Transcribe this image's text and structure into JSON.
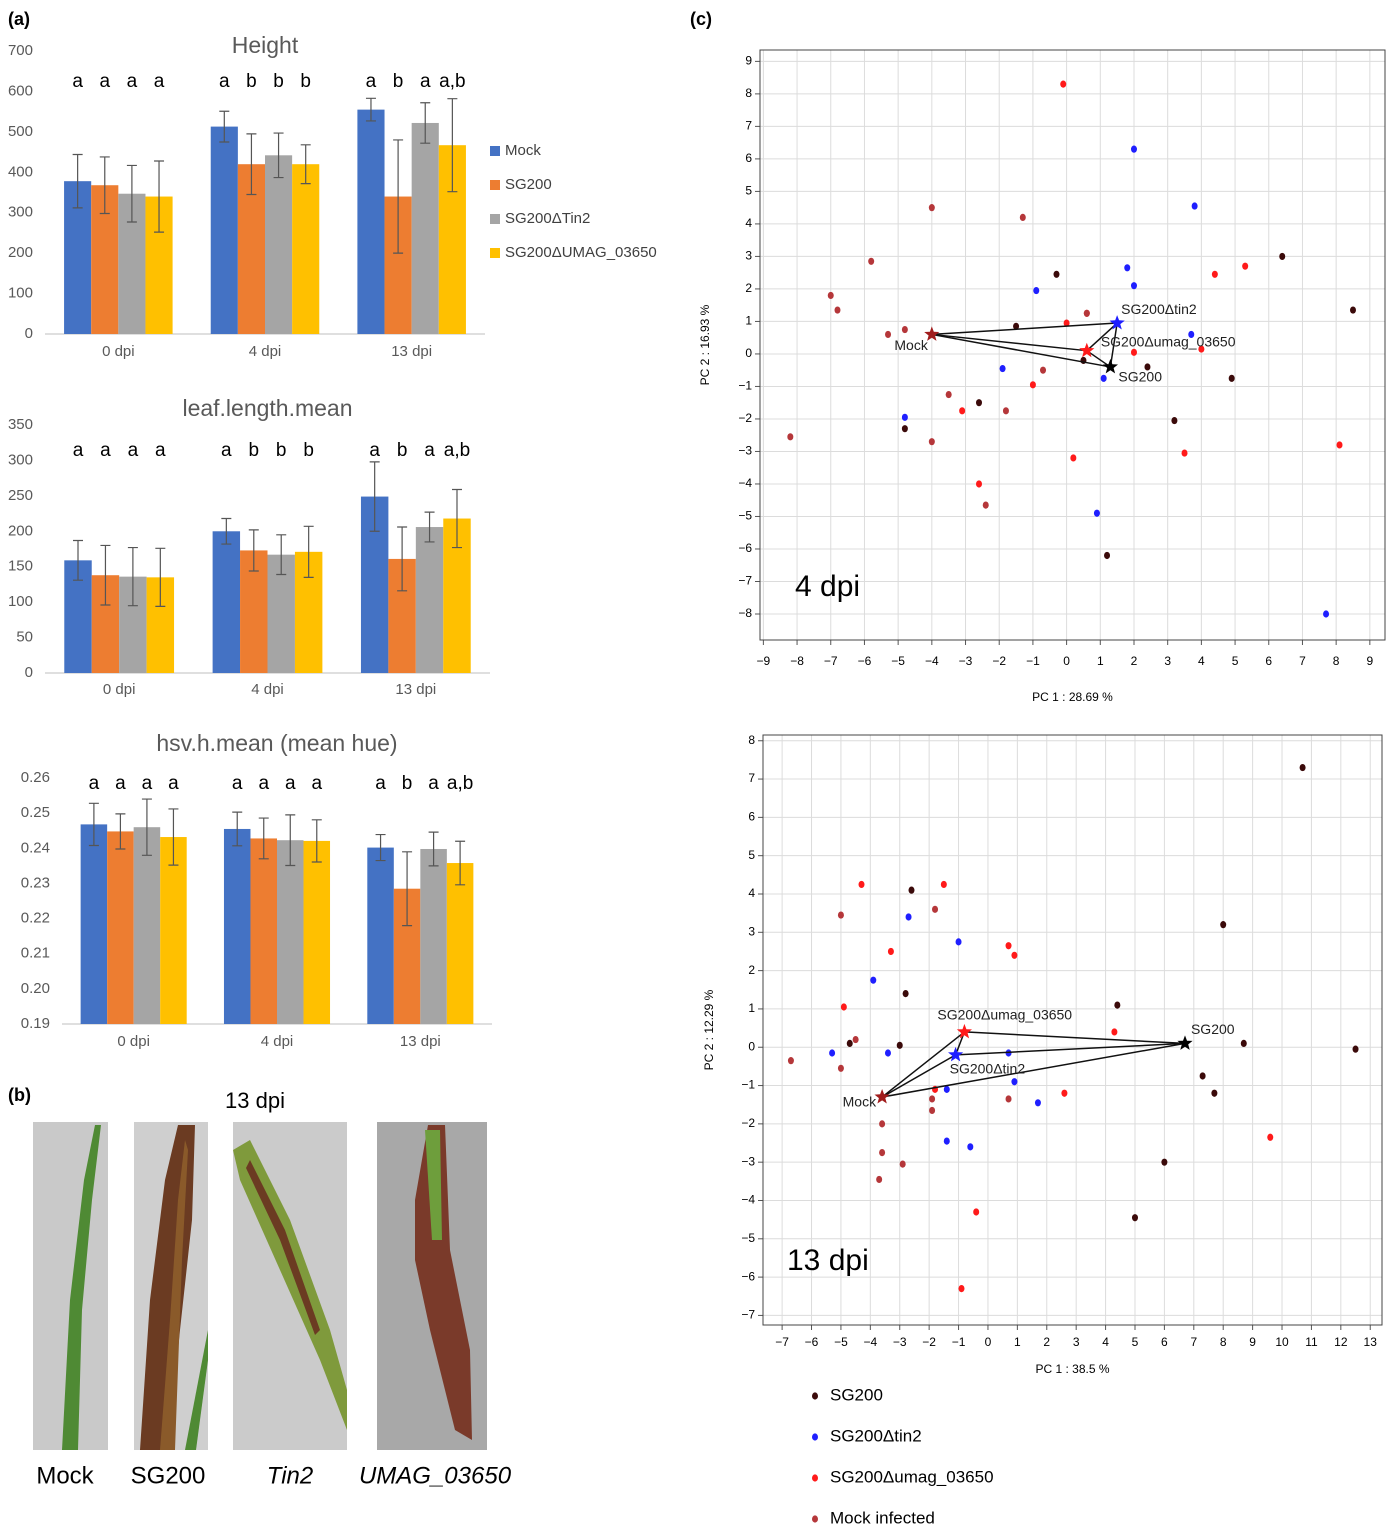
{
  "panel_labels": [
    "(a)",
    "(b)",
    "(c)"
  ],
  "photos": {
    "title": "13 dpi",
    "labels": [
      "Mock",
      "SG200",
      "Tin2",
      "UMAG_03650"
    ]
  },
  "chart_data": [
    {
      "type": "bar",
      "title": "Height",
      "categories": [
        "0 dpi",
        "4 dpi",
        "13 dpi"
      ],
      "ylim": [
        0,
        700
      ],
      "yticks": [
        0,
        100,
        200,
        300,
        400,
        500,
        600,
        700
      ],
      "grid": false,
      "legend": "right",
      "series": [
        {
          "name": "Mock",
          "color": "#4472c4",
          "values": [
            378,
            513,
            555
          ],
          "errors": [
            66,
            38,
            28
          ],
          "letters": [
            "a",
            "a",
            "a"
          ]
        },
        {
          "name": "SG200",
          "color": "#ed7d31",
          "values": [
            368,
            420,
            340
          ],
          "errors": [
            70,
            75,
            140
          ],
          "letters": [
            "a",
            "b",
            "b"
          ]
        },
        {
          "name": "SG200ΔTin2",
          "color": "#a5a5a5",
          "values": [
            347,
            442,
            522
          ],
          "errors": [
            70,
            55,
            50
          ],
          "letters": [
            "a",
            "b",
            "a"
          ]
        },
        {
          "name": "SG200ΔUMAG_03650",
          "color": "#ffc000",
          "values": [
            340,
            420,
            467
          ],
          "errors": [
            88,
            48,
            115
          ],
          "letters": [
            "a",
            "b",
            "a,b"
          ]
        }
      ]
    },
    {
      "type": "bar",
      "title": "leaf.length.mean",
      "categories": [
        "0 dpi",
        "4 dpi",
        "13 dpi"
      ],
      "ylim": [
        0,
        350
      ],
      "yticks": [
        0,
        50,
        100,
        150,
        200,
        250,
        300,
        350
      ],
      "grid": false,
      "series": [
        {
          "color": "#4472c4",
          "values": [
            159,
            200,
            249
          ],
          "errors": [
            28,
            18,
            49
          ],
          "letters": [
            "a",
            "a",
            "a"
          ]
        },
        {
          "color": "#ed7d31",
          "values": [
            138,
            173,
            161
          ],
          "errors": [
            42,
            29,
            45
          ],
          "letters": [
            "a",
            "b",
            "b"
          ]
        },
        {
          "color": "#a5a5a5",
          "values": [
            136,
            167,
            206
          ],
          "errors": [
            41,
            28,
            21
          ],
          "letters": [
            "a",
            "b",
            "a"
          ]
        },
        {
          "color": "#ffc000",
          "values": [
            135,
            171,
            218
          ],
          "errors": [
            41,
            36,
            41
          ],
          "letters": [
            "a",
            "b",
            "a,b"
          ]
        }
      ]
    },
    {
      "type": "bar",
      "title": "hsv.h.mean (mean hue)",
      "categories": [
        "0 dpi",
        "4 dpi",
        "13 dpi"
      ],
      "ylim": [
        0.19,
        0.26
      ],
      "yticks": [
        0.19,
        {
          "value": 0.2,
          "label": "0.20"
        },
        0.21,
        0.22,
        0.23,
        0.24,
        0.25,
        0.26
      ],
      "grid": false,
      "series": [
        {
          "color": "#4472c4",
          "values": [
            0.2468,
            0.2455,
            0.2402
          ],
          "errors": [
            0.006,
            0.0048,
            0.0037
          ],
          "letters": [
            "a",
            "a",
            "a"
          ]
        },
        {
          "color": "#ed7d31",
          "values": [
            0.2448,
            0.2428,
            0.2285
          ],
          "errors": [
            0.005,
            0.0058,
            0.0105
          ],
          "letters": [
            "a",
            "a",
            "b"
          ]
        },
        {
          "color": "#a5a5a5",
          "values": [
            0.246,
            0.2423,
            0.2398
          ],
          "errors": [
            0.008,
            0.0072,
            0.0048
          ],
          "letters": [
            "a",
            "a",
            "a"
          ]
        },
        {
          "color": "#ffc000",
          "values": [
            0.2432,
            0.2421,
            0.2358
          ],
          "errors": [
            0.008,
            0.006,
            0.0062
          ],
          "letters": [
            "a",
            "a",
            "a,b"
          ]
        }
      ]
    },
    {
      "type": "scatter",
      "annotation": "4 dpi",
      "xlabel": "PC 1 :  28.69 %",
      "ylabel": "PC 2 :  16.93 %",
      "xlim": [
        -9.1,
        9.45
      ],
      "ylim": [
        -8.8,
        9.35
      ],
      "grid": true,
      "xticks": [
        {
          "value": -9,
          "label": "−9"
        },
        {
          "value": -8,
          "label": "−8"
        },
        {
          "value": -7,
          "label": "−7"
        },
        {
          "value": -6,
          "label": "−6"
        },
        {
          "value": -5,
          "label": "−5"
        },
        {
          "value": -4,
          "label": "−4"
        },
        {
          "value": -3,
          "label": "−3"
        },
        {
          "value": -2,
          "label": "−2"
        },
        {
          "value": -1,
          "label": "−1"
        },
        0,
        1,
        2,
        3,
        4,
        5,
        6,
        7,
        8,
        9
      ],
      "yticks": [
        {
          "value": -8,
          "label": "−8"
        },
        {
          "value": -7,
          "label": "−7"
        },
        {
          "value": -6,
          "label": "−6"
        },
        {
          "value": -5,
          "label": "−5"
        },
        {
          "value": -4,
          "label": "−4"
        },
        {
          "value": -3,
          "label": "−3"
        },
        {
          "value": -2,
          "label": "−2"
        },
        {
          "value": -1,
          "label": "−1"
        },
        0,
        1,
        2,
        3,
        4,
        5,
        6,
        7,
        8,
        9
      ],
      "series": [
        {
          "color": "#3b0a0a",
          "x": [
            -0.3,
            -1.5,
            0.5,
            -4.8,
            -2.6,
            2.4,
            3.2,
            4.9,
            6.4,
            8.5,
            1.2
          ],
          "y": [
            2.45,
            0.85,
            -0.2,
            -2.3,
            -1.5,
            -0.4,
            -2.05,
            -0.75,
            3.0,
            1.35,
            -6.2
          ]
        },
        {
          "color": "#1f1fff",
          "x": [
            2.0,
            3.8,
            1.8,
            2.0,
            -0.9,
            3.7,
            -1.9,
            1.1,
            -4.8,
            0.9,
            7.7
          ],
          "y": [
            6.3,
            4.55,
            2.65,
            2.1,
            1.95,
            0.6,
            -0.45,
            -0.75,
            -1.95,
            -4.9,
            -8.0
          ]
        },
        {
          "color": "#ff1a1a",
          "x": [
            -0.1,
            4.4,
            5.3,
            0,
            0.6,
            2,
            4,
            -1,
            -3.1,
            3.5,
            8.1,
            0.2,
            -2.6
          ],
          "y": [
            8.3,
            2.45,
            2.7,
            0.95,
            1.25,
            0.05,
            0.15,
            -0.95,
            -1.75,
            -3.05,
            -2.8,
            -3.2,
            -4.0
          ]
        },
        {
          "color": "#b5373a",
          "x": [
            -4,
            -1.3,
            -5.8,
            -7,
            -6.8,
            -5.3,
            -4.8,
            -0.7,
            -3.5,
            -1.8,
            -4,
            -2.4,
            -8.2,
            0.6
          ],
          "y": [
            4.5,
            4.2,
            2.85,
            1.8,
            1.35,
            0.6,
            0.75,
            -0.5,
            -1.25,
            -1.75,
            -2.7,
            -4.65,
            -2.55,
            1.25
          ]
        }
      ],
      "centroids": [
        {
          "label": "SG200Δtin2",
          "color": "#1f1fff",
          "x": 1.5,
          "y": 0.95
        },
        {
          "label": "SG200Δumag_03650",
          "color": "#ff1a1a",
          "x": 0.6,
          "y": 0.1
        },
        {
          "label": "SG200",
          "color": "#000000",
          "x": 1.3,
          "y": -0.4
        },
        {
          "label": "Mock",
          "color": "#a01c1c",
          "x": -4,
          "y": 0.6
        }
      ]
    },
    {
      "type": "scatter",
      "annotation": "13 dpi",
      "xlabel": "PC 1 :  38.5 %",
      "ylabel": "PC 2 :  12.29 %",
      "xlim": [
        -7.65,
        13.4
      ],
      "ylim": [
        -7.25,
        8.15
      ],
      "grid": true,
      "legend": "bottom",
      "xticks": [
        {
          "value": -7,
          "label": "−7"
        },
        {
          "value": -6,
          "label": "−6"
        },
        {
          "value": -5,
          "label": "−5"
        },
        {
          "value": -4,
          "label": "−4"
        },
        {
          "value": -3,
          "label": "−3"
        },
        {
          "value": -2,
          "label": "−2"
        },
        {
          "value": -1,
          "label": "−1"
        },
        0,
        1,
        2,
        3,
        4,
        5,
        6,
        7,
        8,
        9,
        10,
        11,
        12,
        13
      ],
      "yticks": [
        {
          "value": -7,
          "label": "−7"
        },
        {
          "value": -6,
          "label": "−6"
        },
        {
          "value": -5,
          "label": "−5"
        },
        {
          "value": -4,
          "label": "−4"
        },
        {
          "value": -3,
          "label": "−3"
        },
        {
          "value": -2,
          "label": "−2"
        },
        {
          "value": -1,
          "label": "−1"
        },
        0,
        1,
        2,
        3,
        4,
        5,
        6,
        7,
        8
      ],
      "series": [
        {
          "name": "SG200",
          "color": "#3b0a0a",
          "x": [
            -2.6,
            -2.8,
            -4.7,
            -3,
            4.4,
            8,
            8.7,
            7.3,
            7.7,
            12.5,
            10.7,
            6,
            5
          ],
          "y": [
            4.1,
            1.4,
            0.1,
            0.05,
            1.1,
            3.2,
            0.1,
            -0.75,
            -1.2,
            -0.05,
            7.3,
            -3,
            -4.45
          ]
        },
        {
          "name": "SG200Δtin2",
          "color": "#1f1fff",
          "x": [
            -2.7,
            -1.0,
            -3.9,
            -5.3,
            -3.4,
            -1.4,
            0.7,
            0.9,
            1.7,
            -1.4,
            -0.6
          ],
          "y": [
            3.4,
            2.75,
            1.75,
            -0.15,
            -0.15,
            -1.1,
            -0.15,
            -0.9,
            -1.45,
            -2.45,
            -2.6
          ]
        },
        {
          "name": "SG200Δumag_03650",
          "color": "#ff1a1a",
          "x": [
            -4.3,
            -1.5,
            -3.3,
            0.7,
            0.9,
            -4.9,
            4.3,
            -1.8,
            2.6,
            9.6,
            -0.4,
            -0.9
          ],
          "y": [
            4.25,
            4.25,
            2.5,
            2.65,
            2.4,
            1.05,
            0.4,
            -1.1,
            -1.2,
            -2.35,
            -4.3,
            -6.3
          ]
        },
        {
          "name": "Mock infected",
          "color": "#b5373a",
          "x": [
            -5,
            -1.8,
            -4.5,
            -6.7,
            -5,
            -1.9,
            0.7,
            -1.9,
            -3.6,
            -3.6,
            -2.9,
            -3.7
          ],
          "y": [
            3.45,
            3.6,
            0.2,
            -0.35,
            -0.55,
            -1.35,
            -1.35,
            -1.65,
            -2,
            -2.75,
            -3.05,
            -3.45
          ]
        }
      ],
      "centroids": [
        {
          "label": "SG200Δumag_03650",
          "color": "#ff1a1a",
          "x": -0.8,
          "y": 0.4
        },
        {
          "label": "SG200Δtin2",
          "color": "#1f1fff",
          "x": -1.1,
          "y": -0.2
        },
        {
          "label": "SG200",
          "color": "#000000",
          "x": 6.7,
          "y": 0.1
        },
        {
          "label": "Mock",
          "color": "#a01c1c",
          "x": -3.6,
          "y": -1.3
        }
      ]
    }
  ]
}
